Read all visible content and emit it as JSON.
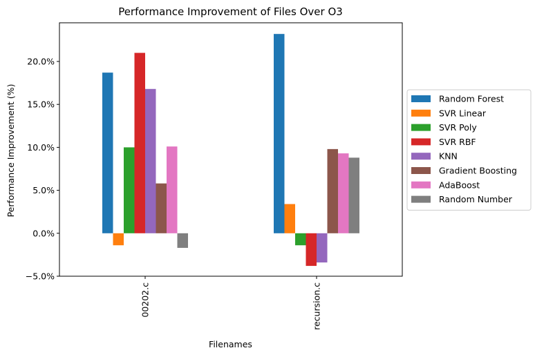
{
  "chart_data": {
    "type": "bar",
    "title": "Performance Improvement of Files Over O3",
    "xlabel": "Filenames",
    "ylabel": "Performance Improvement (%)",
    "categories": [
      "00202.c",
      "recursion.c"
    ],
    "ylim": [
      -5.0,
      24.5
    ],
    "yticks": [
      -5.0,
      0.0,
      5.0,
      10.0,
      15.0,
      20.0
    ],
    "ytick_labels": [
      "−5.0%",
      "0.0%",
      "5.0%",
      "10.0%",
      "15.0%",
      "20.0%"
    ],
    "grid": false,
    "legend_position": "center-right-outside",
    "series": [
      {
        "name": "Random Forest",
        "color": "#1f77b4",
        "values": [
          18.7,
          23.2
        ]
      },
      {
        "name": "SVR Linear",
        "color": "#ff7f0e",
        "values": [
          -1.4,
          3.4
        ]
      },
      {
        "name": "SVR Poly",
        "color": "#2ca02c",
        "values": [
          10.0,
          -1.4
        ]
      },
      {
        "name": "SVR RBF",
        "color": "#d62728",
        "values": [
          21.0,
          -3.8
        ]
      },
      {
        "name": "KNN",
        "color": "#9467bd",
        "values": [
          16.8,
          -3.4
        ]
      },
      {
        "name": "Gradient Boosting",
        "color": "#8c564b",
        "values": [
          5.8,
          9.8
        ]
      },
      {
        "name": "AdaBoost",
        "color": "#e377c2",
        "values": [
          10.1,
          9.3
        ]
      },
      {
        "name": "Random Number",
        "color": "#7f7f7f",
        "values": [
          -1.7,
          8.8
        ]
      }
    ]
  }
}
